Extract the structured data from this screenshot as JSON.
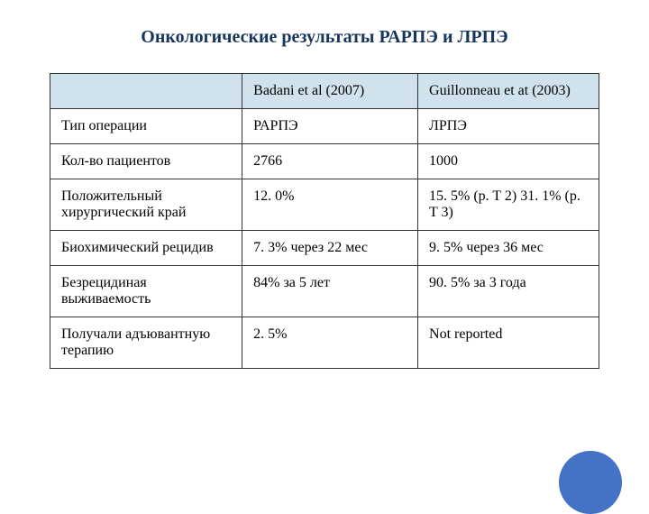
{
  "title": "Онкологические результаты РАРПЭ и ЛРПЭ",
  "table": {
    "header_bg": "#d0e3ec",
    "border_color": "#333333",
    "text_color": "#000000",
    "title_color": "#17365d",
    "title_fontsize": 20,
    "cell_fontsize": 16,
    "columns": [
      {
        "label": "",
        "width": "35%"
      },
      {
        "label": "Badani et al (2007)",
        "width": "32%"
      },
      {
        "label": "Guillonneau et at (2003)",
        "width": "33%"
      }
    ],
    "rows": [
      [
        "Тип операции",
        "РАРПЭ",
        "ЛРПЭ"
      ],
      [
        "Кол-во пациентов",
        "2766",
        "1000"
      ],
      [
        "Положительный хирургический край",
        "12. 0%",
        "15. 5% (p. T 2) 31. 1% (p. T 3)"
      ],
      [
        "Биохимический рецидив",
        "7. 3% через 22 мес",
        "9. 5% через 36 мес"
      ],
      [
        "Безрецидиная выживаемость",
        "84% за 5 лет",
        "90. 5% за 3 года"
      ],
      [
        "Получали адъювантную терапию",
        "2. 5%",
        "Not reported"
      ]
    ]
  },
  "decoration": {
    "circle_color": "#4472c4"
  }
}
